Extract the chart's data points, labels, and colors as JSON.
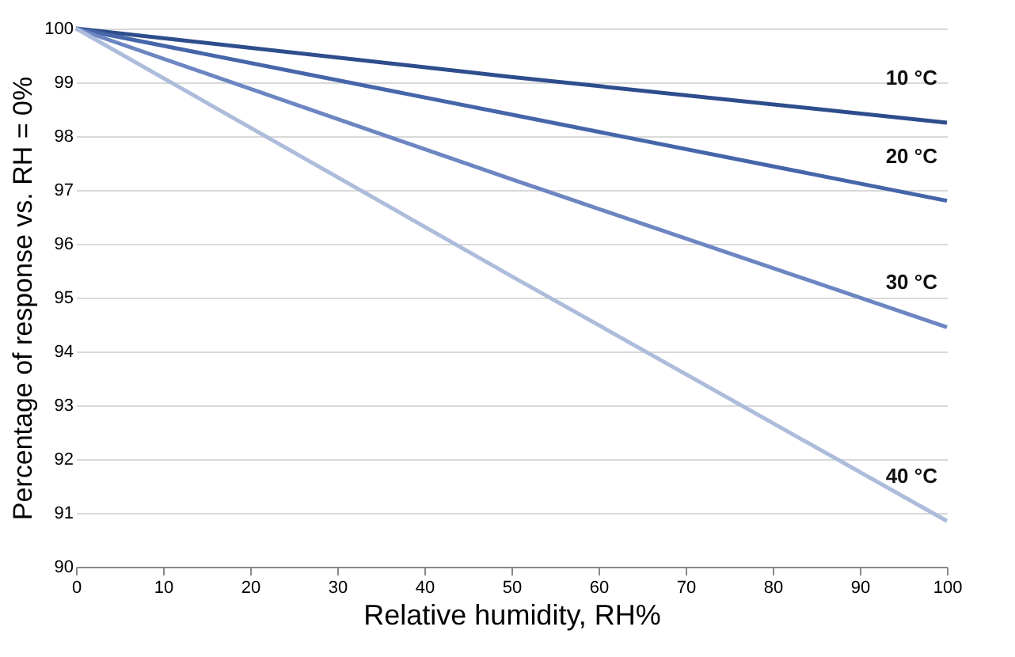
{
  "chart_data": {
    "type": "line",
    "xlabel": "Relative humidity, RH%",
    "ylabel": "Percentage of response vs. RH = 0%",
    "series": [
      {
        "name": "10 °C",
        "color": "#2e4d8c",
        "x": [
          0,
          50,
          100
        ],
        "values": [
          100,
          99.1,
          98.25
        ]
      },
      {
        "name": "20 °C",
        "color": "#4766aa",
        "x": [
          0,
          50,
          100
        ],
        "values": [
          100,
          98.4,
          96.8
        ]
      },
      {
        "name": "30 °C",
        "color": "#6d86c2",
        "x": [
          0,
          50,
          100
        ],
        "values": [
          100,
          97.2,
          94.45
        ]
      },
      {
        "name": "40 °C",
        "color": "#aebcdc",
        "x": [
          0,
          50,
          100
        ],
        "values": [
          100,
          95.4,
          90.85
        ]
      }
    ],
    "xlim": [
      0,
      100
    ],
    "xticks": [
      0,
      10,
      20,
      30,
      40,
      50,
      60,
      70,
      80,
      90,
      100
    ],
    "ylim": [
      90,
      100
    ],
    "yticks": [
      90,
      91,
      92,
      93,
      94,
      95,
      96,
      97,
      98,
      99,
      100
    ],
    "grid": "y",
    "marker": "none",
    "line_style": "solid"
  }
}
